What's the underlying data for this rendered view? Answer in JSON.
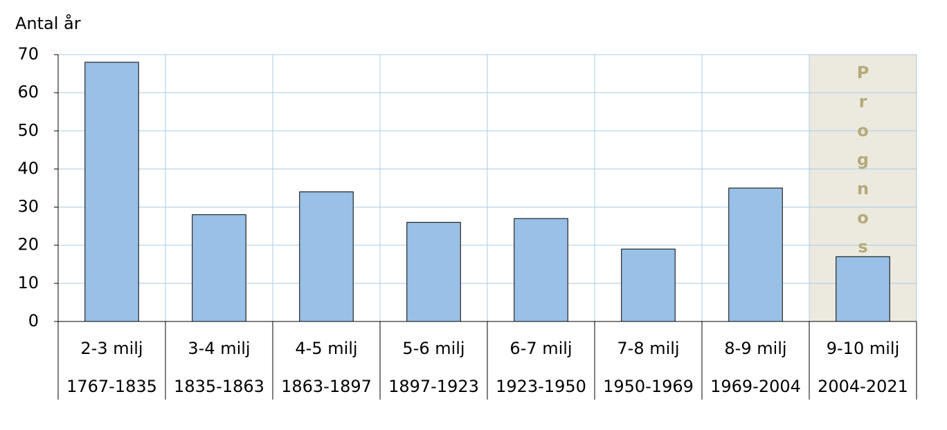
{
  "chart_data": {
    "type": "bar",
    "y_label": "Antal år",
    "categories": [
      "2-3 milj",
      "3-4 milj",
      "4-5 milj",
      "5-6 milj",
      "6-7 milj",
      "7-8 milj",
      "8-9 milj",
      "9-10 milj"
    ],
    "periods": [
      "1767-1835",
      "1835-1863",
      "1863-1897",
      "1897-1923",
      "1923-1950",
      "1950-1969",
      "1969-2004",
      "2004-2021"
    ],
    "values": [
      68,
      28,
      34,
      26,
      27,
      19,
      35,
      17
    ],
    "color": "#99c0e6",
    "ylim": [
      0,
      70
    ],
    "yticks": [
      0,
      10,
      20,
      30,
      40,
      50,
      60,
      70
    ],
    "grid": true,
    "annotation": "Prognos",
    "annotation_category": 7
  }
}
